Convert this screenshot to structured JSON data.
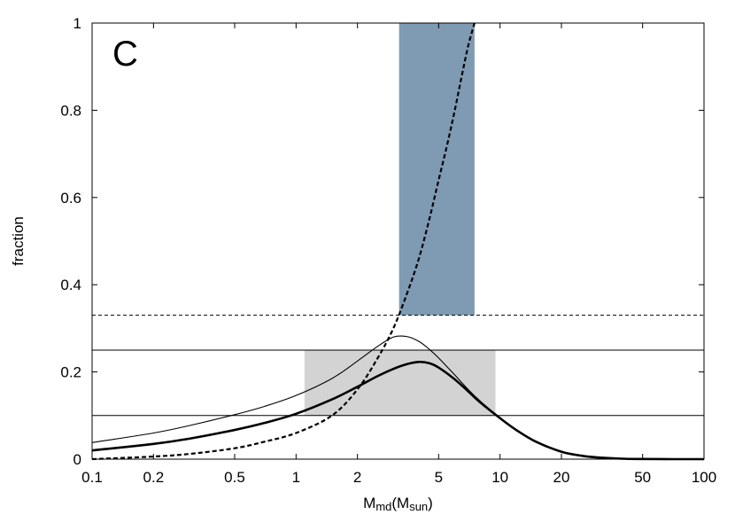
{
  "chart_data": {
    "type": "line",
    "panel_label": "C",
    "xlabel": {
      "main": "M",
      "sub1": "md",
      "mid": "(M",
      "sub2": "sun",
      "end": ")"
    },
    "ylabel": "fraction",
    "xscale": "log",
    "xlim": [
      0.1,
      100
    ],
    "ylim": [
      0,
      1
    ],
    "xticks": [
      0.1,
      0.2,
      0.5,
      1,
      2,
      5,
      10,
      20,
      50,
      100
    ],
    "xtick_labels": [
      "0.1",
      "0.2",
      "0.5",
      "1",
      "2",
      "5",
      "10",
      "20",
      "50",
      "100"
    ],
    "yticks": [
      0,
      0.2,
      0.4,
      0.6,
      0.8,
      1
    ],
    "ytick_labels": [
      "0",
      "0.2",
      "0.4",
      "0.6",
      "0.8",
      "1"
    ],
    "grid": false,
    "colors": {
      "blue_band": "#7f9ab3",
      "gray_band": "#d3d3d3",
      "line": "#000000"
    },
    "bands": [
      {
        "name": "blue-band",
        "x": [
          3.2,
          7.5
        ],
        "y": [
          0.33,
          1.0
        ]
      },
      {
        "name": "gray-band",
        "x": [
          1.1,
          9.5
        ],
        "y": [
          0.1,
          0.25
        ]
      }
    ],
    "hlines": [
      {
        "name": "dashed-hline",
        "y": 0.33,
        "style": "dashed"
      },
      {
        "name": "hline-upper",
        "y": 0.25,
        "style": "solid"
      },
      {
        "name": "hline-lower",
        "y": 0.1,
        "style": "solid"
      }
    ],
    "series": [
      {
        "style": "thick",
        "x": [
          0.1,
          0.2,
          0.3,
          0.5,
          0.7,
          1,
          1.5,
          2,
          2.5,
          3,
          3.5,
          4,
          4.5,
          5,
          6,
          7,
          8,
          10,
          12,
          15,
          20,
          25,
          30,
          40,
          50,
          70,
          100
        ],
        "y": [
          0.02,
          0.035,
          0.047,
          0.067,
          0.083,
          0.104,
          0.137,
          0.166,
          0.19,
          0.207,
          0.218,
          0.223,
          0.22,
          0.21,
          0.183,
          0.155,
          0.13,
          0.094,
          0.067,
          0.04,
          0.017,
          0.008,
          0.004,
          0.001,
          0.0003,
          0,
          0
        ]
      },
      {
        "style": "thin",
        "x": [
          0.1,
          0.2,
          0.3,
          0.5,
          0.7,
          1,
          1.5,
          2,
          2.5,
          3,
          3.5,
          4,
          4.5,
          5,
          6,
          7,
          8,
          10
        ],
        "y": [
          0.038,
          0.06,
          0.077,
          0.102,
          0.121,
          0.146,
          0.185,
          0.225,
          0.258,
          0.28,
          0.281,
          0.27,
          0.252,
          0.232,
          0.193,
          0.159,
          0.133,
          0.094
        ]
      },
      {
        "style": "dashed",
        "x": [
          0.1,
          0.2,
          0.3,
          0.5,
          0.7,
          1,
          1.5,
          2,
          2.5,
          3,
          3.5,
          4,
          4.5,
          5,
          5.5,
          6,
          6.5,
          7,
          7.5
        ],
        "y": [
          0,
          0.006,
          0.012,
          0.025,
          0.04,
          0.06,
          0.1,
          0.16,
          0.23,
          0.3,
          0.38,
          0.46,
          0.55,
          0.64,
          0.72,
          0.8,
          0.88,
          0.95,
          1.0
        ]
      }
    ]
  }
}
